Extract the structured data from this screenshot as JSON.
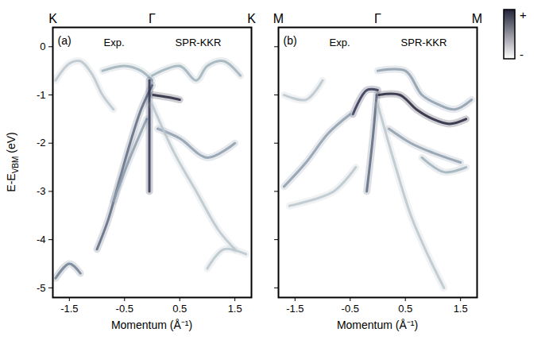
{
  "chart_data": [
    {
      "type": "line",
      "panel_label": "(a)",
      "annotations": [
        "Exp.",
        "SPR-KKR"
      ],
      "xlabel": "Momentum (Å⁻¹)",
      "ylabel": "E-E",
      "ylabel_sub": "VBM",
      "ylabel_unit": " (eV)",
      "xlim": [
        -1.8,
        1.8
      ],
      "xticks": [
        {
          "value": -1.5,
          "label": "-1.5"
        },
        {
          "value": -0.5,
          "label": "-0.5"
        },
        0.5,
        1.5
      ],
      "top_ticks": [
        {
          "value": -1.8,
          "label": "K"
        },
        {
          "value": 0,
          "label": "Γ"
        },
        {
          "value": 1.8,
          "label": "K"
        }
      ],
      "ylim": [
        -5.2,
        0.4
      ],
      "yticks": [
        0,
        {
          "value": -1,
          "label": "-1"
        },
        {
          "value": -2,
          "label": "-2"
        },
        {
          "value": -3,
          "label": "-3"
        },
        {
          "value": -4,
          "label": "-4"
        },
        {
          "value": -5,
          "label": "-5"
        }
      ],
      "tick_labels": true,
      "series": [
        {
          "color": "#b9c6cd",
          "x": [
            -1.75,
            -1.5,
            -1.3,
            -1.1,
            -0.9,
            -0.7
          ],
          "values": [
            -0.7,
            -0.35,
            -0.3,
            -0.55,
            -1.0,
            -1.3
          ]
        },
        {
          "color": "#9fb0ba",
          "x": [
            -0.9,
            -0.5,
            -0.2,
            0
          ],
          "values": [
            -0.5,
            -0.4,
            -0.5,
            -0.7
          ]
        },
        {
          "color": "#5d6a80",
          "x": [
            0,
            -0.2,
            -0.4,
            -0.6,
            -0.8,
            -1.0
          ],
          "values": [
            -0.8,
            -1.3,
            -2.0,
            -2.8,
            -3.6,
            -4.2
          ]
        },
        {
          "color": "#8d9cab",
          "x": [
            -0.1,
            -0.4,
            -0.7
          ],
          "values": [
            -1.5,
            -2.3,
            -3.2
          ]
        },
        {
          "color": "#6f7e92",
          "x": [
            -1.75,
            -1.5,
            -1.3
          ],
          "values": [
            -4.8,
            -4.5,
            -4.7
          ]
        },
        {
          "color": "#2f3450",
          "x": [
            -0.05,
            -0.05,
            -0.05
          ],
          "values": [
            -0.7,
            -1.8,
            -3.0
          ]
        },
        {
          "color": "#23253a",
          "x": [
            0.02,
            0.3,
            0.5
          ],
          "values": [
            -1.0,
            -1.05,
            -1.1
          ]
        },
        {
          "color": "#9fb0ba",
          "x": [
            0,
            0.5,
            0.8,
            1.0,
            1.3,
            1.6
          ],
          "values": [
            -0.6,
            -0.4,
            -0.7,
            -0.4,
            -0.3,
            -0.6
          ]
        },
        {
          "color": "#8d9cab",
          "x": [
            0.1,
            0.5,
            1.0,
            1.5
          ],
          "values": [
            -1.7,
            -1.9,
            -2.3,
            -2.0
          ]
        },
        {
          "color": "#b9c6cd",
          "x": [
            0,
            0.4,
            0.8,
            1.2,
            1.5
          ],
          "values": [
            -1.2,
            -2.2,
            -3.0,
            -3.8,
            -4.2
          ]
        },
        {
          "color": "#b9c6cd",
          "x": [
            1.0,
            1.3,
            1.7
          ],
          "values": [
            -4.6,
            -4.2,
            -4.3
          ]
        }
      ]
    },
    {
      "type": "line",
      "panel_label": "(b)",
      "annotations": [
        "Exp.",
        "SPR-KKR"
      ],
      "xlabel": "Momentum (Å⁻¹)",
      "xlim": [
        -1.8,
        1.8
      ],
      "xticks": [
        {
          "value": -1.5,
          "label": "-1.5"
        },
        {
          "value": -0.5,
          "label": "-0.5"
        },
        0.5,
        1.5
      ],
      "top_ticks": [
        {
          "value": -1.8,
          "label": "M"
        },
        {
          "value": 0,
          "label": "Γ"
        },
        {
          "value": 1.8,
          "label": "M"
        }
      ],
      "ylim": [
        -5.2,
        0.4
      ],
      "yticks": [
        0,
        -1,
        -2,
        -3,
        -4,
        -5
      ],
      "tick_labels": "x",
      "series": [
        {
          "color": "#2f3450",
          "x": [
            0,
            -0.2,
            -0.45
          ],
          "values": [
            -0.9,
            -0.9,
            -1.4
          ]
        },
        {
          "color": "#8d9cab",
          "x": [
            -0.5,
            -0.9,
            -1.3,
            -1.7
          ],
          "values": [
            -1.4,
            -1.8,
            -2.4,
            -2.9
          ]
        },
        {
          "color": "#b9c6cd",
          "x": [
            -1.0,
            -1.3,
            -1.7
          ],
          "values": [
            -0.7,
            -1.1,
            -1.0
          ]
        },
        {
          "color": "#5d6a80",
          "x": [
            -0.02,
            -0.1,
            -0.2
          ],
          "values": [
            -1.0,
            -2.0,
            -3.0
          ]
        },
        {
          "color": "#b9c6cd",
          "x": [
            -0.4,
            -0.8,
            -1.6
          ],
          "values": [
            -2.5,
            -3.0,
            -3.3
          ]
        },
        {
          "color": "#23253a",
          "x": [
            0.02,
            0.4,
            0.7,
            1.0,
            1.3,
            1.6
          ],
          "values": [
            -1.0,
            -1.0,
            -1.3,
            -1.5,
            -1.6,
            -1.5
          ]
        },
        {
          "color": "#8d9cab",
          "x": [
            0,
            0.5,
            0.8,
            1.1,
            1.4,
            1.7
          ],
          "values": [
            -0.5,
            -0.5,
            -1.0,
            -1.2,
            -1.3,
            -1.1
          ]
        },
        {
          "color": "#8d9cab",
          "x": [
            0.2,
            0.6,
            1.0,
            1.5
          ],
          "values": [
            -1.7,
            -2.0,
            -2.2,
            -2.4
          ]
        },
        {
          "color": "#9fb0ba",
          "x": [
            0.8,
            1.2,
            1.6
          ],
          "values": [
            -2.3,
            -2.6,
            -2.5
          ]
        },
        {
          "color": "#b9c6cd",
          "x": [
            0,
            0.3,
            0.6,
            0.9,
            1.2
          ],
          "values": [
            -1.2,
            -2.4,
            -3.5,
            -4.3,
            -5.0
          ]
        }
      ],
      "colorbar": {
        "high_label": "+",
        "low_label": "-",
        "colors": [
          "#ffffff",
          "#23253a"
        ]
      }
    }
  ]
}
